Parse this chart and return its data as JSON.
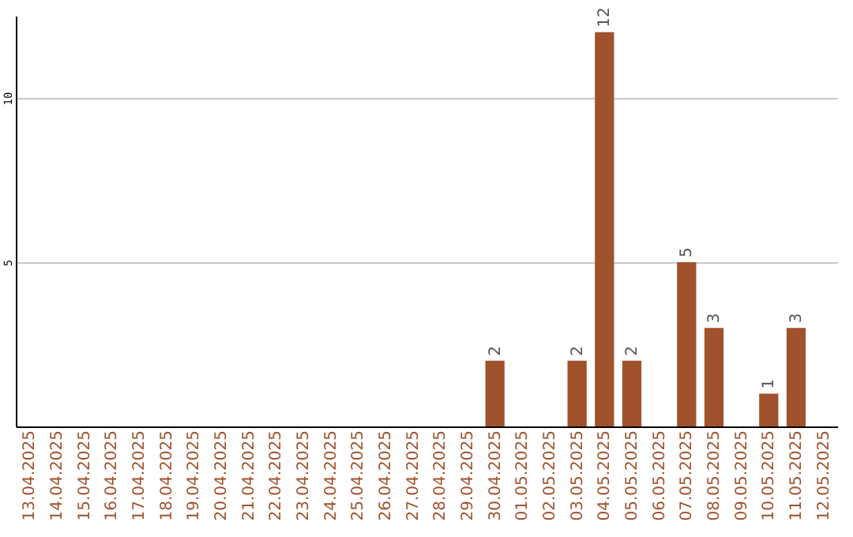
{
  "chart_data": {
    "type": "bar",
    "categories": [
      "13.04.2025",
      "14.04.2025",
      "15.04.2025",
      "16.04.2025",
      "17.04.2025",
      "18.04.2025",
      "19.04.2025",
      "20.04.2025",
      "21.04.2025",
      "22.04.2025",
      "23.04.2025",
      "24.04.2025",
      "25.04.2025",
      "26.04.2025",
      "27.04.2025",
      "28.04.2025",
      "29.04.2025",
      "30.04.2025",
      "01.05.2025",
      "02.05.2025",
      "03.05.2025",
      "04.05.2025",
      "05.05.2025",
      "06.05.2025",
      "07.05.2025",
      "08.05.2025",
      "09.05.2025",
      "10.05.2025",
      "11.05.2025",
      "12.05.2025"
    ],
    "values": [
      0,
      0,
      0,
      0,
      0,
      0,
      0,
      0,
      0,
      0,
      0,
      0,
      0,
      0,
      0,
      0,
      0,
      2,
      0,
      0,
      2,
      12,
      2,
      0,
      5,
      3,
      0,
      1,
      3,
      0
    ],
    "value_labels": [
      null,
      null,
      null,
      null,
      null,
      null,
      null,
      null,
      null,
      null,
      null,
      null,
      null,
      null,
      null,
      null,
      null,
      "2",
      null,
      null,
      "2",
      "12",
      "2",
      null,
      "5",
      "3",
      null,
      "1",
      "3",
      null
    ],
    "color": "#a0522d",
    "ylim": [
      0,
      12.5
    ],
    "yticks": [
      5,
      10
    ],
    "grid": "y"
  }
}
